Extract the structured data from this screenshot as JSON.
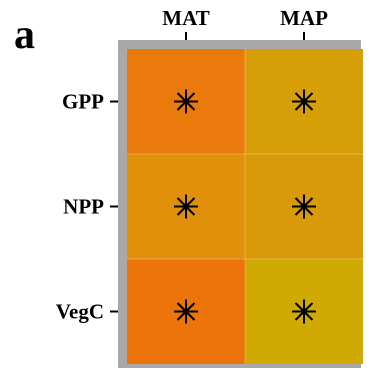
{
  "chart_data": {
    "type": "heatmap",
    "panel_label": "a",
    "title": "",
    "xlabel": "",
    "ylabel": "",
    "columns": [
      "MAT",
      "MAP"
    ],
    "rows": [
      "GPP",
      "NPP",
      "VegC"
    ],
    "cells": [
      [
        "#eb7a0d",
        "#d69f08"
      ],
      [
        "#e0900b",
        "#d99a09"
      ],
      [
        "#ec740a",
        "#cfaa03"
      ]
    ],
    "markers": [
      [
        "✳",
        "✳"
      ],
      [
        "✳",
        "✳"
      ],
      [
        "✳",
        "✳"
      ]
    ],
    "frame_color": "#a9a9a9",
    "grid": false,
    "legend": "none"
  }
}
